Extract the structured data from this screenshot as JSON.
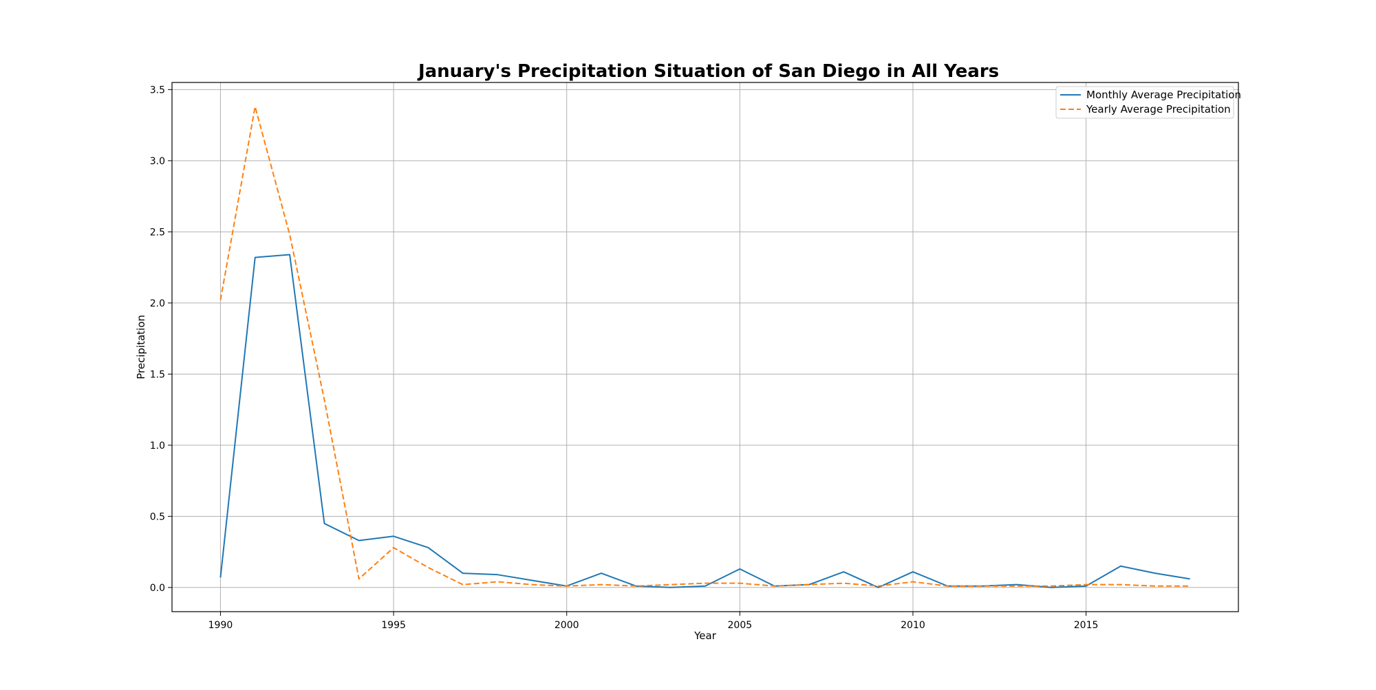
{
  "chart_data": {
    "type": "line",
    "title": "January's Precipitation Situation of San Diego in All Years",
    "xlabel": "Year",
    "ylabel": "Precipitation",
    "xlim": [
      1988.6,
      2019.4
    ],
    "ylim": [
      -0.17,
      3.55
    ],
    "xticks": [
      1990,
      1995,
      2000,
      2005,
      2010,
      2015
    ],
    "yticks": [
      0.0,
      0.5,
      1.0,
      1.5,
      2.0,
      2.5,
      3.0,
      3.5
    ],
    "ytick_labels": [
      "0.0",
      "0.5",
      "1.0",
      "1.5",
      "2.0",
      "2.5",
      "3.0",
      "3.5"
    ],
    "grid": true,
    "legend_position": "top-right",
    "x": [
      1990,
      1991,
      1992,
      1993,
      1994,
      1995,
      1996,
      1997,
      1998,
      1999,
      2000,
      2001,
      2002,
      2003,
      2004,
      2005,
      2006,
      2007,
      2008,
      2009,
      2010,
      2011,
      2012,
      2013,
      2014,
      2015,
      2016,
      2017,
      2018
    ],
    "series": [
      {
        "name": "Monthly Average Precipitation",
        "color": "#1f77b4",
        "style": "solid",
        "values": [
          0.07,
          2.32,
          2.34,
          0.45,
          0.33,
          0.36,
          0.28,
          0.1,
          0.09,
          0.05,
          0.01,
          0.1,
          0.01,
          0.0,
          0.01,
          0.13,
          0.01,
          0.02,
          0.11,
          0.0,
          0.11,
          0.01,
          0.01,
          0.02,
          0.0,
          0.01,
          0.15,
          0.1,
          0.06
        ]
      },
      {
        "name": "Yearly Average Precipitation",
        "color": "#ff7f0e",
        "style": "dashed",
        "values": [
          2.02,
          3.38,
          2.48,
          1.32,
          0.06,
          0.28,
          0.14,
          0.02,
          0.04,
          0.02,
          0.01,
          0.02,
          0.01,
          0.02,
          0.03,
          0.03,
          0.01,
          0.02,
          0.03,
          0.01,
          0.04,
          0.01,
          0.01,
          0.01,
          0.01,
          0.02,
          0.02,
          0.01,
          0.01
        ]
      }
    ]
  }
}
